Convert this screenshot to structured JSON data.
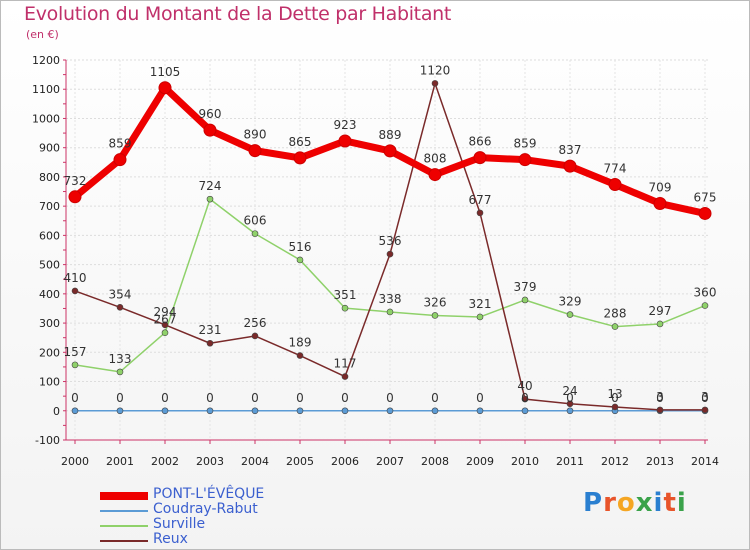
{
  "title": "Evolution du Montant de la Dette par Habitant",
  "unit": "(en €)",
  "logo": {
    "text": "Proxiti",
    "colors": [
      "#2a7fd0",
      "#e8542a",
      "#f5a623",
      "#3aa24a",
      "#2a7fd0",
      "#e8542a",
      "#3aa24a"
    ]
  },
  "chart_data": {
    "type": "line",
    "x": [
      "2000",
      "2001",
      "2002",
      "2003",
      "2004",
      "2005",
      "2006",
      "2007",
      "2008",
      "2009",
      "2010",
      "2011",
      "2012",
      "2013",
      "2014"
    ],
    "ylim": [
      -100,
      1200
    ],
    "yticks": [
      -100,
      0,
      100,
      200,
      300,
      400,
      500,
      600,
      700,
      800,
      900,
      1000,
      1100,
      1200
    ],
    "grid": true,
    "legend_position": "bottom-left",
    "series": [
      {
        "name": "PONT-L'ÉVÊQUE",
        "color": "#ee0000",
        "values": [
          732,
          859,
          1105,
          960,
          890,
          865,
          923,
          889,
          808,
          866,
          859,
          837,
          774,
          709,
          675
        ],
        "labels": [
          "732",
          "859",
          "1105",
          "960",
          "890",
          "865",
          "923",
          "889",
          "808",
          "866",
          "859",
          "837",
          "774",
          "709",
          "675"
        ]
      },
      {
        "name": "Coudray-Rabut",
        "color": "#5b9bd5",
        "values": [
          0,
          0,
          0,
          0,
          0,
          0,
          0,
          0,
          0,
          0,
          0,
          0,
          0,
          0,
          0
        ],
        "labels": [
          "0",
          "0",
          "0",
          "0",
          "0",
          "0",
          "0",
          "0",
          "0",
          "0",
          "0",
          "0",
          "0",
          "0",
          "0"
        ]
      },
      {
        "name": "Surville",
        "color": "#8fd16a",
        "values": [
          157,
          133,
          267,
          724,
          606,
          516,
          351,
          338,
          326,
          321,
          379,
          329,
          288,
          297,
          360
        ],
        "labels": [
          "157",
          "133",
          "267",
          "724",
          "606",
          "516",
          "351",
          "338",
          "326",
          "321",
          "379",
          "329",
          "288",
          "297",
          "360"
        ]
      },
      {
        "name": "Reux",
        "color": "#7a2a2a",
        "values": [
          410,
          354,
          294,
          231,
          256,
          189,
          117,
          536,
          1120,
          677,
          40,
          24,
          13,
          3,
          3
        ],
        "labels": [
          "410",
          "354",
          "294",
          "231",
          "256",
          "189",
          "117",
          "536",
          "1120",
          "677",
          "40",
          "24",
          "13",
          "3",
          "3"
        ]
      }
    ]
  }
}
